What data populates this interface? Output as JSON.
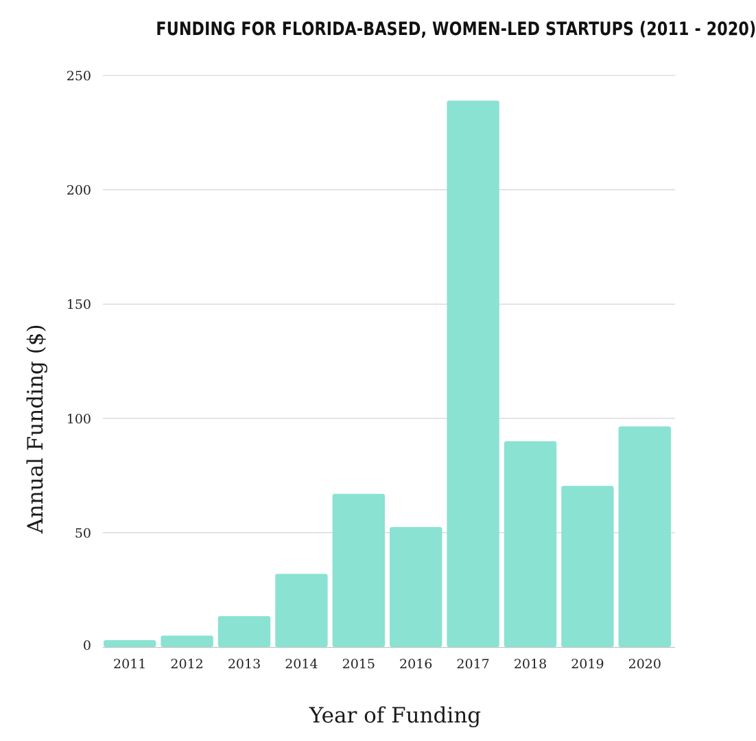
{
  "chart_data": {
    "type": "bar",
    "title": "FUNDING FOR FLORIDA-BASED, WOMEN-LED STARTUPS (2011 - 2020)",
    "xlabel": "Year of Funding",
    "ylabel": "Annual Funding ($)",
    "categories": [
      "2011",
      "2012",
      "2013",
      "2014",
      "2015",
      "2016",
      "2017",
      "2018",
      "2019",
      "2020"
    ],
    "values": [
      3,
      5,
      13.5,
      32,
      67,
      52.5,
      239,
      90,
      70.5,
      96.5
    ],
    "ylim": [
      0,
      250
    ],
    "yticks": [
      0,
      50,
      100,
      150,
      200,
      250
    ],
    "grid": true,
    "legend": "none",
    "colors": {
      "bar": "#8ae2d2",
      "grid": "#cccccc",
      "baseline": "#bbbbbb"
    }
  }
}
